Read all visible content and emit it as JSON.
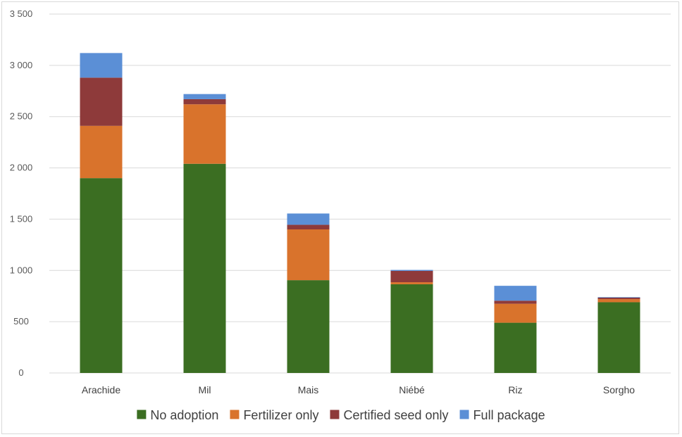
{
  "chart_data": {
    "type": "bar",
    "stacked": true,
    "title": "",
    "xlabel": "",
    "ylabel": "",
    "ylim": [
      0,
      3500
    ],
    "yticks": [
      0,
      500,
      1000,
      1500,
      2000,
      2500,
      3000,
      3500
    ],
    "ytick_labels": [
      "0",
      "500",
      "1 000",
      "1 500",
      "2 000",
      "2 500",
      "3 000",
      "3 500"
    ],
    "grid": true,
    "legend_position": "bottom",
    "categories": [
      "Arachide",
      "Mil",
      "Mais",
      "Niébé",
      "Riz",
      "Sorgho"
    ],
    "series": [
      {
        "name": "No adoption",
        "color": "#3b6e22",
        "values": [
          1900,
          2040,
          905,
          865,
          490,
          690
        ]
      },
      {
        "name": "Fertilizer only",
        "color": "#d9732c",
        "values": [
          510,
          580,
          495,
          20,
          185,
          30
        ]
      },
      {
        "name": "Certified seed only",
        "color": "#8e3a3a",
        "values": [
          470,
          50,
          45,
          110,
          30,
          15
        ]
      },
      {
        "name": "Full package",
        "color": "#5b8fd6",
        "values": [
          240,
          50,
          110,
          10,
          145,
          5
        ]
      }
    ]
  }
}
